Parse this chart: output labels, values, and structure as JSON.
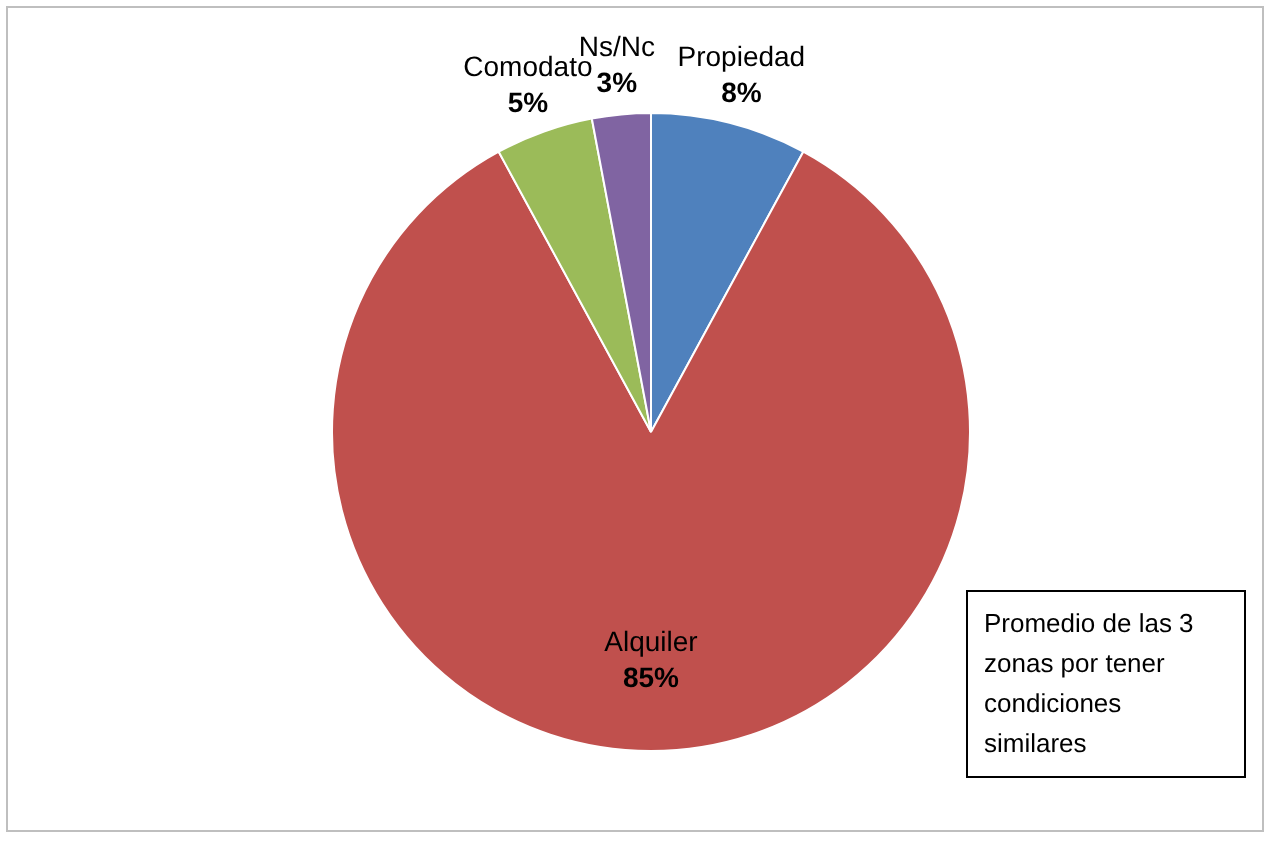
{
  "chart_data": {
    "type": "pie",
    "categories": [
      "Propiedad",
      "Alquiler",
      "Comodato",
      "Ns/Nc"
    ],
    "values": [
      8,
      85,
      5,
      3
    ],
    "value_labels": [
      "8%",
      "85%",
      "5%",
      "3%"
    ],
    "colors": [
      "#4f81bd",
      "#c0504d",
      "#9bbb59",
      "#8064a2"
    ],
    "legend": false,
    "annotations": [
      "Promedio de las 3 zonas por tener condiciones similares"
    ]
  }
}
